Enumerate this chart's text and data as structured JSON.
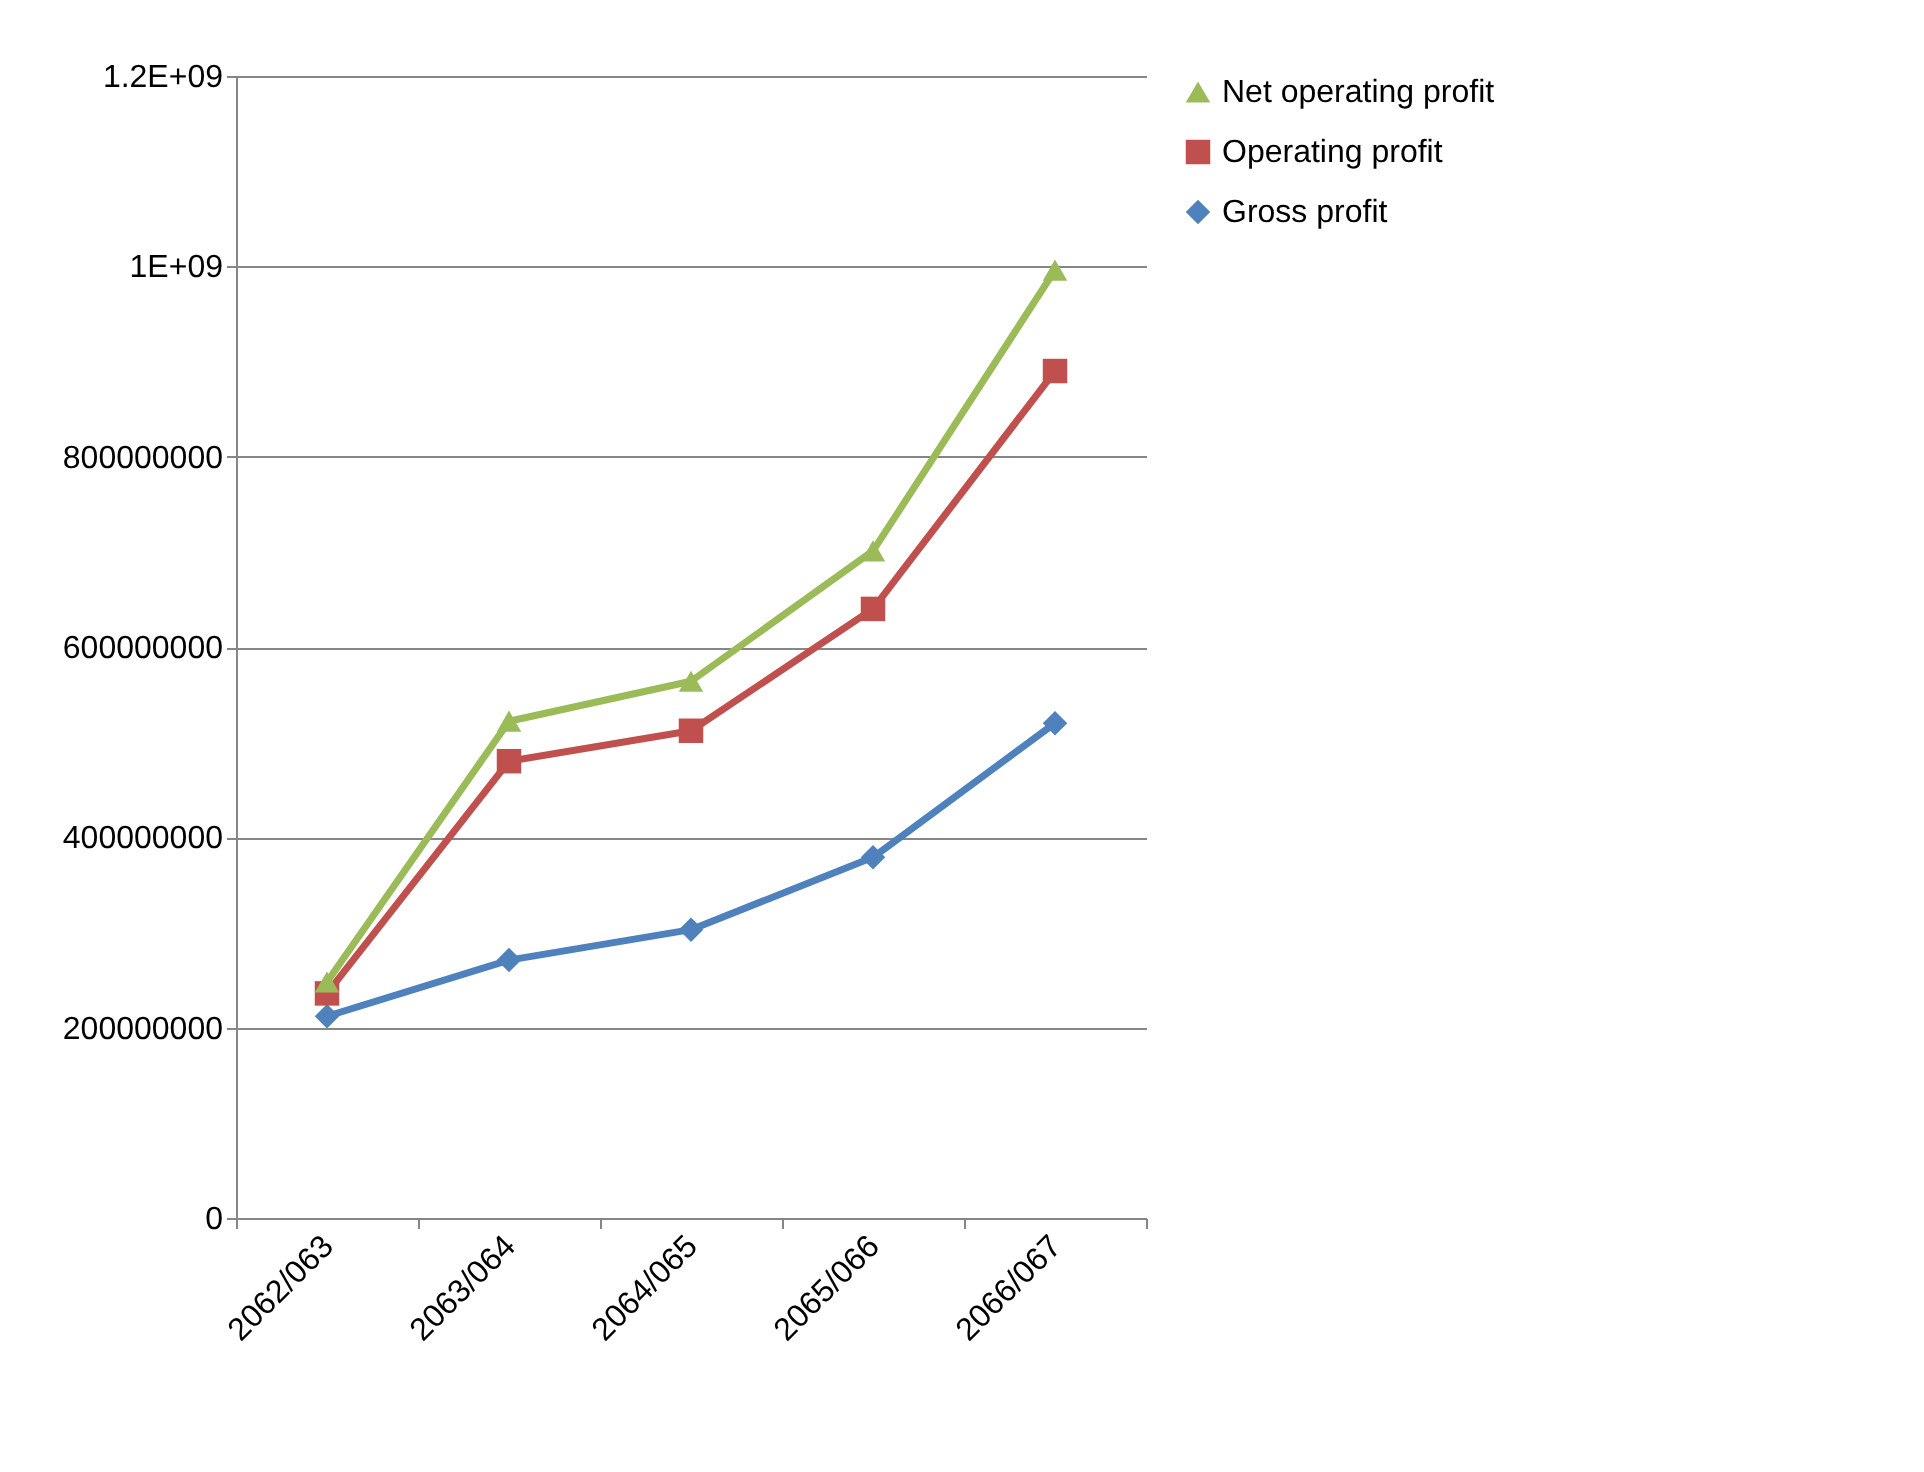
{
  "chart_data": {
    "type": "line",
    "categories": [
      "2062/063",
      "2063/064",
      "2064/065",
      "2065/066",
      "2066/067"
    ],
    "series": [
      {
        "name": "Net operating profit",
        "color": "#9bbb59",
        "marker": "triangle",
        "values": [
          248000000,
          522000000,
          564000000,
          701000000,
          996000000
        ]
      },
      {
        "name": "Operating profit",
        "color": "#c0504d",
        "marker": "square",
        "values": [
          236000000,
          480000000,
          512000000,
          640000000,
          890000000
        ]
      },
      {
        "name": "Gross profit",
        "color": "#4f81bd",
        "marker": "diamond",
        "values": [
          212000000,
          271000000,
          303000000,
          379000000,
          520000000
        ]
      }
    ],
    "ylim": [
      0,
      1200000000
    ],
    "yticks": [
      0,
      200000000,
      400000000,
      600000000,
      800000000,
      {
        "value": 1000000000,
        "label": "1E+09"
      },
      {
        "value": 1200000000,
        "label": "1.2E+09"
      }
    ],
    "grid": "y",
    "legend": "right",
    "line_style": "solid"
  }
}
